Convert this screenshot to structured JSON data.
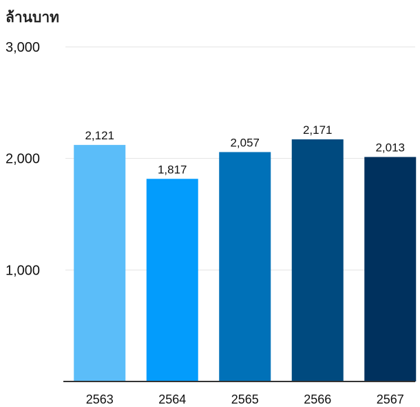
{
  "chart_data": {
    "type": "bar",
    "ylabel": "ล้านบาท",
    "categories": [
      "2563",
      "2564",
      "2565",
      "2566",
      "2567"
    ],
    "values": [
      2121,
      1817,
      2057,
      2171,
      2013
    ],
    "data_labels": [
      "2,121",
      "1,817",
      "2,057",
      "2,171",
      "2,013"
    ],
    "bar_colors": [
      "#5bbdf9",
      "#039cfc",
      "#0071b8",
      "#004a7f",
      "#00315e"
    ],
    "ylim": [
      0,
      3000
    ],
    "y_ticks": [
      {
        "value": 1000,
        "label": "1,000"
      },
      {
        "value": 2000,
        "label": "2,000"
      },
      {
        "value": 3000,
        "label": "3,000"
      }
    ],
    "grid": true,
    "legend": "none"
  }
}
